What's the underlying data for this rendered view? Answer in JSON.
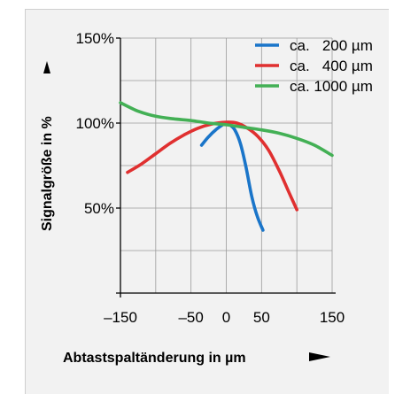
{
  "chart_data": {
    "type": "line",
    "xlabel": "Abtastspaltänderung in µm",
    "ylabel": "Signalgröße in %",
    "xlim": [
      -150,
      150
    ],
    "ylim": [
      0,
      150
    ],
    "x_ticks": [
      -150,
      -50,
      0,
      50,
      150
    ],
    "x_tick_labels": [
      "–150",
      "–50",
      "0",
      "50",
      "150"
    ],
    "y_ticks": [
      50,
      100,
      150
    ],
    "y_tick_labels": [
      "50%",
      "100%",
      "150%"
    ],
    "x_grid": [
      -150,
      -100,
      -50,
      0,
      50,
      100,
      150
    ],
    "y_grid": [
      0,
      25,
      50,
      75,
      100,
      125,
      150
    ],
    "grid": true,
    "legend_position": "top-right",
    "series": [
      {
        "name": "ca.   200 µm",
        "color": "#1a75c9",
        "points": [
          [
            -35,
            87
          ],
          [
            -25,
            92
          ],
          [
            -15,
            96
          ],
          [
            -5,
            99
          ],
          [
            0,
            100
          ],
          [
            5,
            99
          ],
          [
            12,
            96
          ],
          [
            20,
            88
          ],
          [
            28,
            74
          ],
          [
            36,
            57
          ],
          [
            44,
            45
          ],
          [
            52,
            37
          ]
        ]
      },
      {
        "name": "ca.   400 µm",
        "color": "#e03030",
        "points": [
          [
            -140,
            71
          ],
          [
            -120,
            76
          ],
          [
            -100,
            82
          ],
          [
            -80,
            88
          ],
          [
            -60,
            93
          ],
          [
            -40,
            97
          ],
          [
            -20,
            99.5
          ],
          [
            0,
            100.5
          ],
          [
            15,
            100
          ],
          [
            30,
            97
          ],
          [
            45,
            92
          ],
          [
            60,
            84
          ],
          [
            75,
            72
          ],
          [
            88,
            60
          ],
          [
            100,
            49
          ]
        ]
      },
      {
        "name": "ca. 1000 µm",
        "color": "#43b055",
        "points": [
          [
            -150,
            112
          ],
          [
            -125,
            107
          ],
          [
            -100,
            104
          ],
          [
            -75,
            102.5
          ],
          [
            -50,
            101.5
          ],
          [
            -25,
            100
          ],
          [
            0,
            99
          ],
          [
            25,
            97.5
          ],
          [
            50,
            96
          ],
          [
            75,
            94
          ],
          [
            100,
            91
          ],
          [
            125,
            87
          ],
          [
            150,
            81
          ]
        ]
      }
    ]
  }
}
